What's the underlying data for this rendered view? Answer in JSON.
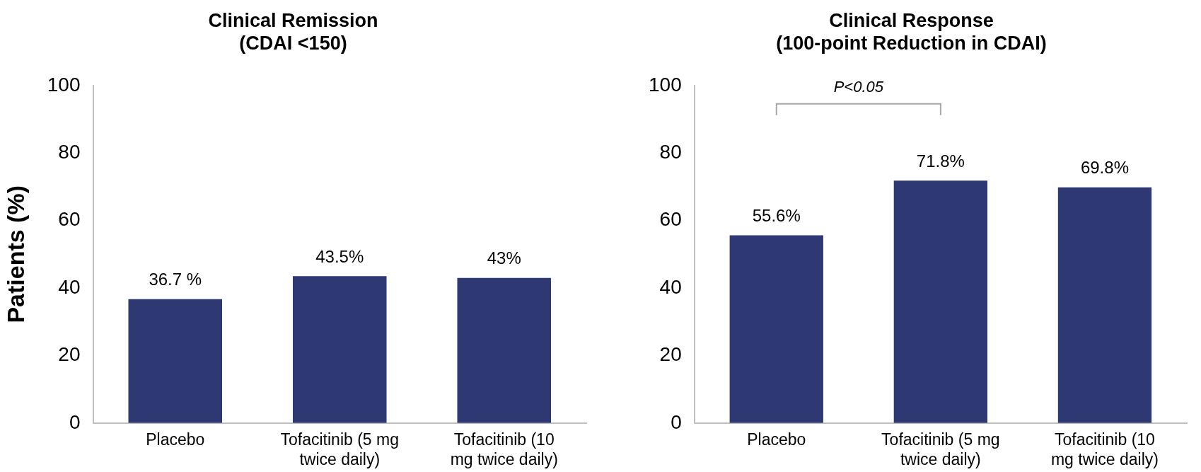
{
  "chart_data": [
    {
      "type": "bar",
      "title": "Clinical Remission\n(CDAI <150)",
      "ylabel": "Patients (%)",
      "categories": [
        "Placebo",
        "Tofacitinib (5 mg twice daily)",
        "Tofacitinib (10 mg twice daily)"
      ],
      "values": [
        36.7,
        43.5,
        43
      ],
      "value_labels": [
        "36.7 %",
        "43.5%",
        "43%"
      ],
      "color": "#2e3872",
      "ylim": [
        0,
        100
      ],
      "yticks": [
        0,
        20,
        40,
        60,
        80,
        100
      ],
      "grid": false,
      "legend": false
    },
    {
      "type": "bar",
      "title": "Clinical Response\n(100-point Reduction in CDAI)",
      "categories": [
        "Placebo",
        "Tofacitinib (5 mg twice daily)",
        "Tofacitinib (10 mg twice daily)"
      ],
      "values": [
        55.6,
        71.8,
        69.8
      ],
      "value_labels": [
        "55.6%",
        "71.8%",
        "69.8%"
      ],
      "color": "#2e3872",
      "ylim": [
        0,
        100
      ],
      "yticks": [
        0,
        20,
        40,
        60,
        80,
        100
      ],
      "grid": false,
      "legend": false,
      "annotations": [
        "P<0.05"
      ]
    }
  ]
}
